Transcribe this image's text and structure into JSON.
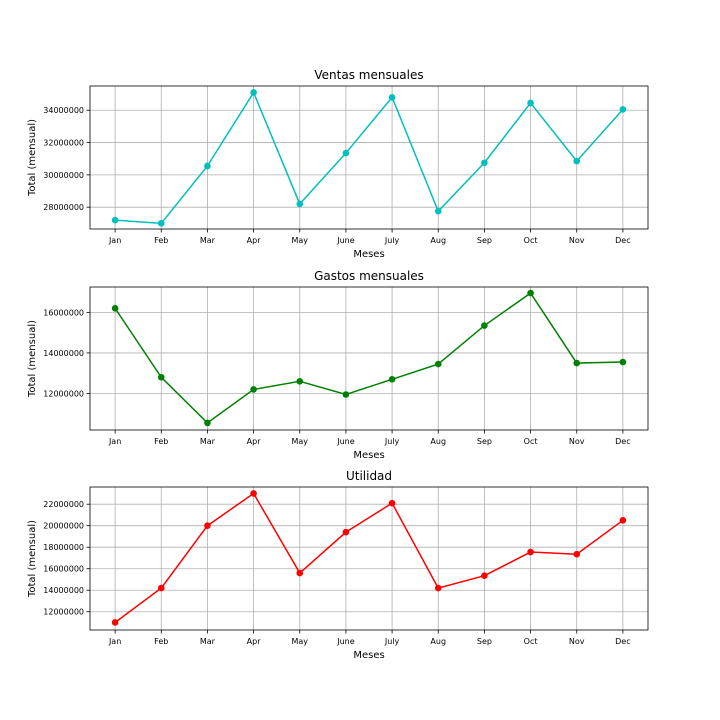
{
  "chart_data": [
    {
      "type": "line",
      "title": "Ventas mensuales",
      "xlabel": "Meses",
      "ylabel": "Total (mensual)",
      "categories": [
        "Jan",
        "Feb",
        "Mar",
        "Apr",
        "May",
        "June",
        "July",
        "Aug",
        "Sep",
        "Oct",
        "Nov",
        "Dec"
      ],
      "series": [
        {
          "values": [
            27200000,
            27000000,
            30550000,
            35100000,
            28200000,
            31350000,
            34800000,
            27750000,
            30750000,
            34450000,
            30850000,
            34050000
          ],
          "color": "#00bfbf"
        }
      ],
      "ylim": [
        26650000,
        35500000
      ],
      "yticks": [
        28000000,
        30000000,
        32000000,
        34000000
      ],
      "grid": true
    },
    {
      "type": "line",
      "title": "Gastos mensuales",
      "xlabel": "Meses",
      "ylabel": "Total (mensual)",
      "categories": [
        "Jan",
        "Feb",
        "Mar",
        "Apr",
        "May",
        "June",
        "July",
        "Aug",
        "Sep",
        "Oct",
        "Nov",
        "Dec"
      ],
      "series": [
        {
          "values": [
            16200000,
            12800000,
            10550000,
            12200000,
            12600000,
            11950000,
            12700000,
            13450000,
            15350000,
            16950000,
            13500000,
            13550000
          ],
          "color": "#008000"
        }
      ],
      "ylim": [
        10200000,
        17250000
      ],
      "yticks": [
        12000000,
        14000000,
        16000000
      ],
      "grid": true
    },
    {
      "type": "line",
      "title": "Utilidad",
      "xlabel": "Meses",
      "ylabel": "Total (mensual)",
      "categories": [
        "Jan",
        "Feb",
        "Mar",
        "Apr",
        "May",
        "June",
        "July",
        "Aug",
        "Sep",
        "Oct",
        "Nov",
        "Dec"
      ],
      "series": [
        {
          "values": [
            11000000,
            14200000,
            20000000,
            23000000,
            15600000,
            19400000,
            22100000,
            14200000,
            15350000,
            17550000,
            17350000,
            20500000
          ],
          "color": "#ff0000"
        }
      ],
      "ylim": [
        10300000,
        23600000
      ],
      "yticks": [
        12000000,
        14000000,
        16000000,
        18000000,
        20000000,
        22000000
      ],
      "grid": true
    }
  ]
}
